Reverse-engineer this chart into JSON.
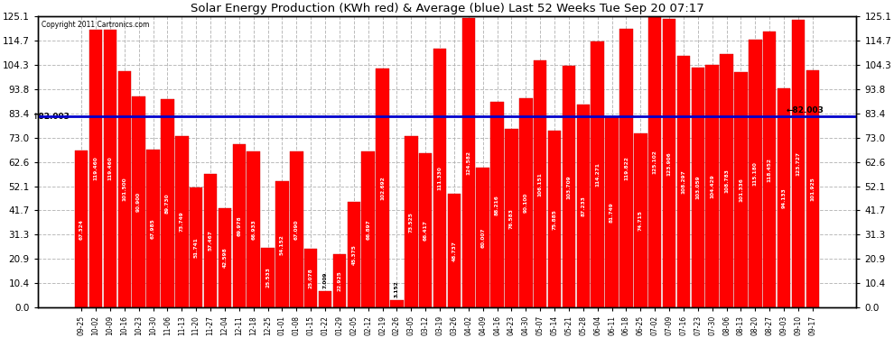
{
  "title": "Solar Energy Production (KWh red) & Average (blue) Last 52 Weeks Tue Sep 20 07:17",
  "copyright": "Copyright 2011 Cartronics.com",
  "average": 82.003,
  "bar_color": "#ff0000",
  "avg_line_color": "#0000cc",
  "background_color": "#ffffff",
  "grid_color": "#aaaaaa",
  "yticks": [
    0.0,
    10.4,
    20.9,
    31.3,
    41.7,
    52.1,
    62.6,
    73.0,
    83.4,
    93.8,
    104.3,
    114.7,
    125.1
  ],
  "ylim": [
    0.0,
    125.1
  ],
  "xlabels": [
    "09-25",
    "10-02",
    "10-09",
    "10-16",
    "10-23",
    "10-30",
    "11-06",
    "11-13",
    "11-20",
    "11-27",
    "12-04",
    "12-11",
    "12-18",
    "12-25",
    "01-01",
    "01-08",
    "01-15",
    "01-22",
    "01-29",
    "02-05",
    "02-12",
    "02-19",
    "02-26",
    "03-05",
    "03-12",
    "03-19",
    "03-26",
    "04-02",
    "04-09",
    "04-16",
    "04-23",
    "04-30",
    "05-07",
    "05-14",
    "05-21",
    "05-28",
    "06-04",
    "06-11",
    "06-18",
    "06-25",
    "07-02",
    "07-09",
    "07-16",
    "07-23",
    "07-30",
    "08-06",
    "08-13",
    "08-20",
    "08-27",
    "09-03",
    "09-10",
    "09-17"
  ],
  "values": [
    67.324,
    119.46,
    119.46,
    101.5,
    90.9,
    67.985,
    89.73,
    73.749,
    51.741,
    57.467,
    42.598,
    69.978,
    66.933,
    25.533,
    54.152,
    67.09,
    25.078,
    7.009,
    22.925,
    45.375,
    66.897,
    102.692,
    3.152,
    73.525,
    66.417,
    111.33,
    48.737,
    124.582,
    60.007,
    88.216,
    76.583,
    90.1,
    106.151,
    75.885,
    103.709,
    87.233,
    114.271,
    81.749,
    119.822,
    74.715,
    125.102,
    123.906,
    108.297,
    103.059,
    104.429,
    108.783,
    101.336,
    115.18,
    118.452,
    94.133,
    123.727,
    101.925
  ]
}
